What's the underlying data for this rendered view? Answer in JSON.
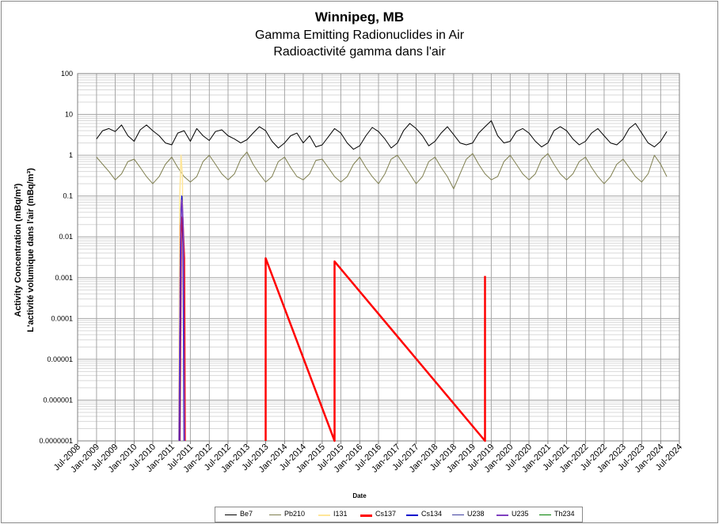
{
  "chart_data": {
    "type": "line",
    "title": "Winnipeg, MB",
    "subtitle": "Gamma Emitting Radionuclides in Air",
    "subtitle_fr": "Radioactivité gamma dans l'air",
    "ylabel": "Activity Concentration  (mBq/m³)",
    "ylabel_fr": "L'activité volumique dans l'air (mBq/m³)",
    "xlabel": "Date",
    "y_scale": "log",
    "ylim": [
      1e-07,
      100
    ],
    "y_ticks": [
      "100",
      "10",
      "1",
      "0.1",
      "0.01",
      "0.001",
      "0.0001",
      "0.00001",
      "0.000001",
      "0.0000001"
    ],
    "xlim": [
      "2008-07-01",
      "2024-07-01"
    ],
    "x_ticks": [
      "Jul-2008",
      "Jan-2009",
      "Jul-2009",
      "Jan-2010",
      "Jul-2010",
      "Jan-2011",
      "Jul-2011",
      "Jan-2012",
      "Jul-2012",
      "Jan-2013",
      "Jul-2013",
      "Jan-2014",
      "Jul-2014",
      "Jan-2015",
      "Jul-2015",
      "Jan-2016",
      "Jul-2016",
      "Jan-2017",
      "Jul-2017",
      "Jan-2018",
      "Jul-2018",
      "Jan-2019",
      "Jul-2019",
      "Jan-2020",
      "Jul-2020",
      "Jan-2021",
      "Jul-2021",
      "Jan-2022",
      "Jul-2022",
      "Jan-2023",
      "Jul-2023",
      "Jan-2024",
      "Jul-2024"
    ],
    "grid": true,
    "legend_position": "bottom",
    "series": [
      {
        "name": "Be7",
        "color": "#000000",
        "width": 1,
        "x": [
          "2009-01-01",
          "2009-03-01",
          "2009-05-01",
          "2009-07-01",
          "2009-09-01",
          "2009-11-01",
          "2010-01-01",
          "2010-03-01",
          "2010-05-01",
          "2010-07-01",
          "2010-09-01",
          "2010-11-01",
          "2011-01-01",
          "2011-03-01",
          "2011-05-01",
          "2011-07-01",
          "2011-09-01",
          "2011-11-01",
          "2012-01-01",
          "2012-03-01",
          "2012-05-01",
          "2012-07-01",
          "2012-09-01",
          "2012-11-01",
          "2013-01-01",
          "2013-03-01",
          "2013-05-01",
          "2013-07-01",
          "2013-09-01",
          "2013-11-01",
          "2014-01-01",
          "2014-03-01",
          "2014-05-01",
          "2014-07-01",
          "2014-09-01",
          "2014-11-01",
          "2015-01-01",
          "2015-03-01",
          "2015-05-01",
          "2015-07-01",
          "2015-09-01",
          "2015-11-01",
          "2016-01-01",
          "2016-03-01",
          "2016-05-01",
          "2016-07-01",
          "2016-09-01",
          "2016-11-01",
          "2017-01-01",
          "2017-03-01",
          "2017-05-01",
          "2017-07-01",
          "2017-09-01",
          "2017-11-01",
          "2018-01-01",
          "2018-03-01",
          "2018-05-01",
          "2018-07-01",
          "2018-09-01",
          "2018-11-01",
          "2019-01-01",
          "2019-03-01",
          "2019-05-01",
          "2019-07-01",
          "2019-09-01",
          "2019-11-01",
          "2020-01-01",
          "2020-03-01",
          "2020-05-01",
          "2020-07-01",
          "2020-09-01",
          "2020-11-01",
          "2021-01-01",
          "2021-03-01",
          "2021-05-01",
          "2021-07-01",
          "2021-09-01",
          "2021-11-01",
          "2022-01-01",
          "2022-03-01",
          "2022-05-01",
          "2022-07-01",
          "2022-09-01",
          "2022-11-01",
          "2023-01-01",
          "2023-03-01",
          "2023-05-01",
          "2023-07-01",
          "2023-09-01",
          "2023-11-01",
          "2024-01-01",
          "2024-03-01"
        ],
        "y": [
          2.5,
          4.0,
          4.5,
          3.8,
          5.5,
          3.0,
          2.2,
          4.2,
          5.5,
          4.0,
          3.0,
          2.0,
          1.8,
          3.5,
          4.0,
          2.2,
          4.5,
          3.0,
          2.3,
          3.8,
          4.2,
          3.0,
          2.5,
          2.0,
          2.4,
          3.5,
          5.0,
          4.0,
          2.2,
          1.5,
          2.0,
          3.0,
          3.5,
          2.0,
          3.0,
          1.6,
          1.8,
          2.8,
          4.5,
          3.5,
          2.0,
          1.4,
          1.7,
          3.0,
          4.8,
          3.8,
          2.5,
          1.5,
          2.0,
          4.0,
          6.0,
          4.5,
          3.0,
          1.7,
          2.2,
          3.5,
          5.0,
          3.2,
          2.0,
          1.8,
          2.0,
          3.5,
          5.0,
          7.0,
          3.0,
          2.0,
          2.2,
          3.8,
          4.5,
          3.5,
          2.2,
          1.6,
          2.0,
          4.0,
          5.0,
          4.0,
          2.5,
          1.8,
          2.2,
          3.5,
          4.5,
          3.0,
          2.0,
          1.8,
          2.5,
          4.5,
          6.0,
          3.5,
          2.0,
          1.6,
          2.2,
          3.8
        ]
      },
      {
        "name": "Pb210",
        "color": "#7f7f4f",
        "width": 1,
        "x": [
          "2009-01-01",
          "2009-03-01",
          "2009-05-01",
          "2009-07-01",
          "2009-09-01",
          "2009-11-01",
          "2010-01-01",
          "2010-03-01",
          "2010-05-01",
          "2010-07-01",
          "2010-09-01",
          "2010-11-01",
          "2011-01-01",
          "2011-03-01",
          "2011-05-01",
          "2011-07-01",
          "2011-09-01",
          "2011-11-01",
          "2012-01-01",
          "2012-03-01",
          "2012-05-01",
          "2012-07-01",
          "2012-09-01",
          "2012-11-01",
          "2013-01-01",
          "2013-03-01",
          "2013-05-01",
          "2013-07-01",
          "2013-09-01",
          "2013-11-01",
          "2014-01-01",
          "2014-03-01",
          "2014-05-01",
          "2014-07-01",
          "2014-09-01",
          "2014-11-01",
          "2015-01-01",
          "2015-03-01",
          "2015-05-01",
          "2015-07-01",
          "2015-09-01",
          "2015-11-01",
          "2016-01-01",
          "2016-03-01",
          "2016-05-01",
          "2016-07-01",
          "2016-09-01",
          "2016-11-01",
          "2017-01-01",
          "2017-03-01",
          "2017-05-01",
          "2017-07-01",
          "2017-09-01",
          "2017-11-01",
          "2018-01-01",
          "2018-03-01",
          "2018-05-01",
          "2018-07-01",
          "2018-09-01",
          "2018-11-01",
          "2019-01-01",
          "2019-03-01",
          "2019-05-01",
          "2019-07-01",
          "2019-09-01",
          "2019-11-01",
          "2020-01-01",
          "2020-03-01",
          "2020-05-01",
          "2020-07-01",
          "2020-09-01",
          "2020-11-01",
          "2021-01-01",
          "2021-03-01",
          "2021-05-01",
          "2021-07-01",
          "2021-09-01",
          "2021-11-01",
          "2022-01-01",
          "2022-03-01",
          "2022-05-01",
          "2022-07-01",
          "2022-09-01",
          "2022-11-01",
          "2023-01-01",
          "2023-03-01",
          "2023-05-01",
          "2023-07-01",
          "2023-09-01",
          "2023-11-01",
          "2024-01-01",
          "2024-03-01"
        ],
        "y": [
          0.9,
          0.6,
          0.4,
          0.25,
          0.35,
          0.7,
          0.8,
          0.5,
          0.3,
          0.2,
          0.3,
          0.6,
          0.9,
          0.5,
          0.3,
          0.22,
          0.3,
          0.7,
          1.0,
          0.6,
          0.35,
          0.25,
          0.35,
          0.8,
          1.2,
          0.6,
          0.35,
          0.22,
          0.3,
          0.7,
          0.9,
          0.5,
          0.3,
          0.25,
          0.35,
          0.75,
          0.8,
          0.5,
          0.3,
          0.22,
          0.3,
          0.6,
          0.9,
          0.5,
          0.3,
          0.2,
          0.35,
          0.8,
          1.0,
          0.6,
          0.35,
          0.2,
          0.3,
          0.7,
          0.9,
          0.5,
          0.3,
          0.15,
          0.35,
          0.8,
          1.1,
          0.6,
          0.35,
          0.25,
          0.3,
          0.7,
          1.0,
          0.6,
          0.35,
          0.25,
          0.35,
          0.8,
          1.1,
          0.6,
          0.35,
          0.25,
          0.35,
          0.7,
          0.9,
          0.5,
          0.3,
          0.2,
          0.3,
          0.6,
          0.8,
          0.5,
          0.3,
          0.22,
          0.35,
          1.0,
          0.6,
          0.3
        ]
      },
      {
        "name": "I131",
        "color": "#ffe699",
        "width": 1.5,
        "x": [
          "2011-03-10",
          "2011-03-20",
          "2011-04-01",
          "2011-04-15",
          "2011-05-01"
        ],
        "y": [
          1e-07,
          0.1,
          1.0,
          0.3,
          1e-07
        ]
      },
      {
        "name": "Cs137",
        "color": "#ff0000",
        "width": 2.5,
        "x": [
          "2011-03-18",
          "2011-04-01",
          "2011-04-15",
          "2011-05-01",
          "2011-05-08",
          "2011-05-10",
          "2013-07-01",
          "2013-07-01",
          "2015-05-01",
          "2015-05-01",
          "2019-05-01",
          "2019-05-01"
        ],
        "y": [
          1e-07,
          0.02,
          0.03,
          0.003,
          1e-07,
          null,
          1e-07,
          0.003,
          1e-07,
          0.0025,
          1e-07,
          0.0011
        ]
      },
      {
        "name": "Cs134",
        "color": "#0000cc",
        "width": 1.5,
        "x": [
          "2011-03-18",
          "2011-04-01",
          "2011-04-10",
          "2011-04-20",
          "2011-05-01"
        ],
        "y": [
          1e-07,
          0.05,
          0.1,
          0.02,
          1e-07
        ]
      },
      {
        "name": "U238",
        "color": "#3f3f9f",
        "width": 1,
        "x": [],
        "y": []
      },
      {
        "name": "U235",
        "color": "#7f3fbf",
        "width": 1.5,
        "x": [
          "2011-03-12",
          "2011-03-25",
          "2011-04-05",
          "2011-04-15",
          "2011-04-25",
          "2011-05-05"
        ],
        "y": [
          1e-07,
          0.004,
          0.08,
          0.06,
          0.01,
          1e-07
        ]
      },
      {
        "name": "Th234",
        "color": "#007f00",
        "width": 1,
        "x": [],
        "y": []
      }
    ]
  }
}
